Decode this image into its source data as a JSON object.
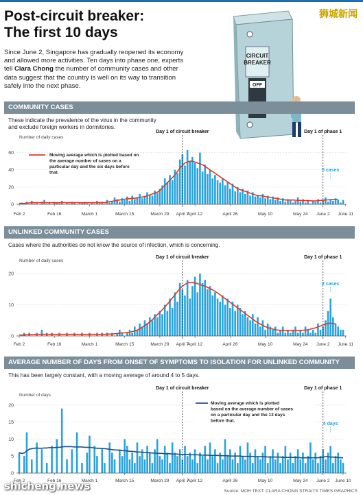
{
  "header": {
    "title_line1": "Post-circuit breaker:",
    "title_line2": "The first 10 days",
    "brand": "狮城新闻",
    "intro_part1": "Since June 2, Singapore has gradually reopened its economy and allowed more activities. Ten days into phase one, experts tell ",
    "intro_bold": "Clara Chong",
    "intro_part2": " the number of community cases and other data suggest that the country is well on its way to transition safely into the next phase.",
    "illustration_text1": "CIRCUIT",
    "illustration_text2": "BREAKER",
    "illustration_text3": "OFF"
  },
  "sections": [
    {
      "title": "COMMUNITY CASES",
      "description": "These indicate the prevalence of the virus in the community\nand exclude foreign workers in dormitories."
    },
    {
      "title": "UNLINKED COMMUNITY CASES",
      "description": "Cases where the authorities do not know the source of infection, which is concerning."
    },
    {
      "title": "AVERAGE NUMBER OF DAYS FROM ONSET OF SYMPTOMS TO ISOLATION FOR UNLINKED COMMUNITY CASES",
      "description": "This has been largely constant, with a moving average of around 4 to 5 days."
    }
  ],
  "footer": {
    "watermark": "shicheng.news",
    "source": "Source: MOH   TEXT: CLARA CHONG   STRAITS TIMES GRAPHICS"
  },
  "colors": {
    "bar": "#29a3dc",
    "line": "#d93a2b",
    "line3": "#1b4f93",
    "section": "#7c8e99",
    "marker": "#222222",
    "accent_text": "#29a3dc"
  },
  "chart_data": [
    {
      "type": "bar",
      "title": "COMMUNITY CASES",
      "ylabel": "Number of daily cases",
      "ylim": [
        0,
        70
      ],
      "yticks": [
        0,
        20,
        40,
        60
      ],
      "x_tick_labels": [
        "Feb 2",
        "Feb 16",
        "March 1",
        "March 15",
        "March 29",
        "April 7",
        "April 12",
        "April 26",
        "May 10",
        "May 24",
        "June 2",
        "June 11"
      ],
      "x_tick_days": [
        0,
        14,
        28,
        42,
        56,
        65,
        70,
        84,
        98,
        112,
        121,
        130
      ],
      "markers": [
        {
          "day": 65,
          "label": "Day 1 of circuit breaker"
        },
        {
          "day": 121,
          "label": "Day 1 of phase 1"
        }
      ],
      "legend_text": "Moving average which is plotted based on the average number of cases on a particular day and the six days before that.",
      "end_annotation": "5 cases",
      "series": [
        {
          "name": "Daily community cases",
          "values": [
            0,
            2,
            1,
            3,
            0,
            4,
            1,
            2,
            0,
            3,
            5,
            1,
            2,
            0,
            3,
            2,
            1,
            4,
            0,
            2,
            1,
            3,
            2,
            0,
            1,
            2,
            3,
            1,
            0,
            2,
            1,
            4,
            2,
            3,
            1,
            5,
            2,
            4,
            8,
            6,
            3,
            7,
            5,
            9,
            4,
            10,
            6,
            8,
            12,
            7,
            9,
            14,
            11,
            10,
            16,
            13,
            18,
            22,
            30,
            26,
            34,
            28,
            40,
            36,
            52,
            58,
            45,
            63,
            50,
            55,
            48,
            42,
            60,
            38,
            46,
            35,
            40,
            30,
            34,
            28,
            25,
            30,
            22,
            26,
            18,
            24,
            15,
            20,
            14,
            18,
            12,
            16,
            10,
            14,
            9,
            11,
            8,
            12,
            7,
            10,
            6,
            9,
            5,
            8,
            4,
            7,
            3,
            6,
            5,
            2,
            4,
            8,
            3,
            6,
            2,
            5,
            1,
            4,
            3,
            6,
            2,
            5,
            8,
            3,
            6,
            4,
            7,
            5,
            2,
            5
          ]
        },
        {
          "name": "Moving average",
          "values": [
            1,
            1,
            1,
            1.5,
            1.5,
            2,
            2,
            2,
            2,
            2,
            2,
            2,
            2,
            1.8,
            1.8,
            1.8,
            1.8,
            2,
            2,
            2,
            2,
            2,
            2,
            2,
            1.8,
            1.8,
            1.8,
            1.8,
            1.8,
            2,
            2,
            2,
            2,
            2,
            2,
            2.5,
            3,
            3.5,
            4,
            4.5,
            5,
            5.5,
            6,
            6.5,
            6.5,
            7,
            7,
            7.5,
            8,
            8.5,
            9,
            10,
            11,
            12,
            13,
            14,
            16,
            19,
            22,
            25,
            28,
            31,
            34,
            38,
            42,
            45,
            48,
            49,
            50,
            50,
            49,
            48,
            47,
            46,
            44,
            42,
            40,
            38,
            36,
            34,
            32,
            30,
            28,
            26,
            24,
            22,
            20,
            18,
            17,
            16,
            15,
            14,
            13,
            12,
            11,
            10,
            10,
            9.5,
            9,
            8.5,
            8,
            7.5,
            7,
            6.5,
            6,
            5.5,
            5,
            5,
            5,
            5,
            4.8,
            4.6,
            4.5,
            4.4,
            4.3,
            4.2,
            4.1,
            4,
            4,
            4.2,
            4.5,
            4.8,
            5,
            5.2,
            5.4,
            5.5,
            5.6,
            5.5
          ]
        }
      ]
    },
    {
      "type": "bar",
      "title": "UNLINKED COMMUNITY CASES",
      "ylabel": "Number of daily cases",
      "ylim": [
        0,
        22
      ],
      "yticks": [
        0,
        10,
        20
      ],
      "x_tick_labels": [
        "Feb 2",
        "Feb 16",
        "March 1",
        "March 15",
        "March 29",
        "April 7",
        "April 12",
        "April 26",
        "May 10",
        "May 24",
        "June 2",
        "June 11"
      ],
      "x_tick_days": [
        0,
        14,
        28,
        42,
        56,
        65,
        70,
        84,
        98,
        112,
        121,
        130
      ],
      "markers": [
        {
          "day": 65,
          "label": "Day 1 of circuit breaker"
        },
        {
          "day": 121,
          "label": "Day 1 of phase 1"
        }
      ],
      "end_annotation": "2 cases",
      "series": [
        {
          "name": "Daily unlinked cases",
          "values": [
            0,
            0,
            1,
            0,
            1,
            0,
            0,
            1,
            0,
            2,
            0,
            1,
            0,
            1,
            0,
            0,
            1,
            0,
            0,
            1,
            0,
            0,
            1,
            0,
            0,
            1,
            0,
            0,
            1,
            0,
            0,
            1,
            0,
            1,
            0,
            1,
            0,
            1,
            0,
            1,
            2,
            1,
            0,
            1,
            2,
            1,
            3,
            2,
            4,
            3,
            5,
            4,
            6,
            5,
            7,
            6,
            8,
            7,
            10,
            8,
            12,
            9,
            14,
            11,
            17,
            15,
            13,
            18,
            12,
            16,
            19,
            14,
            20,
            17,
            18,
            15,
            16,
            13,
            14,
            12,
            11,
            13,
            10,
            12,
            9,
            11,
            8,
            10,
            9,
            7,
            8,
            6,
            5,
            7,
            4,
            6,
            3,
            5,
            2,
            4,
            3,
            2,
            3,
            1,
            2,
            3,
            1,
            2,
            1,
            2,
            3,
            1,
            2,
            1,
            3,
            2,
            1,
            2,
            1,
            4,
            2,
            3,
            5,
            8,
            12,
            6,
            4,
            3,
            2,
            2
          ]
        },
        {
          "name": "Moving average",
          "values": [
            0.3,
            0.3,
            0.3,
            0.4,
            0.4,
            0.4,
            0.4,
            0.5,
            0.5,
            0.5,
            0.5,
            0.5,
            0.5,
            0.5,
            0.5,
            0.5,
            0.5,
            0.5,
            0.5,
            0.5,
            0.5,
            0.5,
            0.5,
            0.5,
            0.5,
            0.5,
            0.5,
            0.5,
            0.5,
            0.5,
            0.5,
            0.5,
            0.5,
            0.5,
            0.5,
            0.6,
            0.6,
            0.6,
            0.7,
            0.8,
            0.9,
            1,
            1,
            1.1,
            1.2,
            1.4,
            1.6,
            1.9,
            2.3,
            2.8,
            3.3,
            3.9,
            4.5,
            5.2,
            6,
            6.8,
            7.6,
            8.4,
            9.3,
            10.2,
            11.2,
            12.2,
            13.2,
            14.2,
            15.2,
            16,
            16.5,
            17,
            17.2,
            17.2,
            17,
            16.8,
            16.5,
            16.2,
            16,
            15.6,
            15.2,
            14.8,
            14.3,
            13.8,
            13.2,
            12.6,
            12,
            11.4,
            10.8,
            10.2,
            9.6,
            9,
            8.4,
            7.8,
            7.2,
            6.6,
            6,
            5.4,
            4.8,
            4.3,
            3.8,
            3.4,
            3,
            2.7,
            2.4,
            2.2,
            2,
            1.9,
            1.8,
            1.8,
            1.7,
            1.7,
            1.7,
            1.7,
            1.7,
            1.7,
            1.7,
            1.8,
            1.9,
            2,
            2.2,
            2.4,
            2.6,
            2.9,
            3.2,
            3.5,
            3.8,
            4,
            4.1,
            4,
            3.8
          ]
        }
      ]
    },
    {
      "type": "bar",
      "title": "AVERAGE NUMBER OF DAYS FROM ONSET OF SYMPTOMS TO ISOLATION FOR UNLINKED COMMUNITY CASES",
      "ylabel": "Number of days",
      "ylim": [
        0,
        21
      ],
      "yticks": [
        0,
        5,
        10,
        15,
        20
      ],
      "x_tick_labels": [
        "Feb 2",
        "Feb 16",
        "March 1",
        "March 15",
        "March 29",
        "April 7",
        "April 12",
        "April 26",
        "May 10",
        "May 24",
        "June 2",
        "June 10"
      ],
      "x_tick_days": [
        0,
        14,
        28,
        42,
        56,
        65,
        70,
        84,
        98,
        112,
        121,
        129
      ],
      "markers": [
        {
          "day": 65,
          "label": "Day 1 of circuit breaker"
        },
        {
          "day": 121,
          "label": "Day 1 of phase 1"
        }
      ],
      "legend_text": "Moving average which is plotted based on the average number of cases on a particular day and the 13 days before that.",
      "end_annotation": "4 days",
      "series": [
        {
          "name": "Days to isolation",
          "values": [
            6,
            0,
            5,
            12,
            0,
            4,
            0,
            9,
            0,
            7,
            0,
            3,
            0,
            8,
            0,
            10,
            0,
            19,
            0,
            4,
            0,
            7,
            0,
            12,
            0,
            3,
            0,
            6,
            11,
            0,
            8,
            5,
            0,
            7,
            3,
            0,
            9,
            6,
            4,
            0,
            7,
            5,
            10,
            8,
            4,
            6,
            3,
            9,
            5,
            7,
            4,
            8,
            6,
            3,
            7,
            10,
            5,
            4,
            8,
            6,
            3,
            9,
            6,
            5,
            7,
            4,
            8,
            5,
            6,
            4,
            7,
            3,
            6,
            5,
            8,
            4,
            9,
            5,
            7,
            3,
            6,
            4,
            10,
            5,
            7,
            4,
            6,
            3,
            8,
            5,
            4,
            9,
            6,
            3,
            7,
            5,
            4,
            6,
            8,
            3,
            5,
            7,
            4,
            6,
            3,
            5,
            8,
            4,
            6,
            3,
            5,
            7,
            4,
            6,
            3,
            5,
            9,
            4,
            6,
            3,
            5,
            7,
            4,
            6,
            8,
            3,
            5,
            6,
            4,
            3
          ]
        },
        {
          "name": "Moving average",
          "values": [
            6,
            5.8,
            5.9,
            6.5,
            7,
            7.2,
            7.3,
            7.4,
            7.3,
            7.3,
            7.4,
            7.4,
            7.5,
            7.5,
            7.5,
            7.6,
            7.6,
            7.7,
            7.8,
            7.8,
            7.8,
            7.8,
            7.7,
            7.7,
            7.7,
            7.7,
            7.6,
            7.6,
            7.6,
            7.5,
            7.4,
            7.3,
            7.3,
            7.2,
            7.2,
            7.1,
            7,
            6.9,
            6.8,
            6.8,
            6.7,
            6.6,
            6.6,
            6.5,
            6.4,
            6.4,
            6.3,
            6.2,
            6.2,
            6.1,
            6.1,
            6,
            6,
            5.9,
            5.9,
            5.8,
            5.8,
            5.8,
            5.7,
            5.7,
            5.7,
            5.6,
            5.6,
            5.6,
            5.5,
            5.5,
            5.5,
            5.5,
            5.4,
            5.4,
            5.4,
            5.4,
            5.3,
            5.3,
            5.3,
            5.3,
            5.2,
            5.2,
            5.2,
            5.2,
            5.1,
            5.1,
            5.1,
            5.1,
            5,
            5,
            5,
            5,
            5,
            4.9,
            4.9,
            4.9,
            4.9,
            4.9,
            4.8,
            4.8,
            4.8,
            4.8,
            4.8,
            4.7,
            4.7,
            4.7,
            4.7,
            4.7,
            4.7,
            4.6,
            4.6,
            4.6,
            4.6,
            4.6,
            4.6,
            4.6,
            4.5,
            4.5,
            4.5,
            4.5,
            4.5,
            4.5,
            4.5,
            4.5,
            4.6,
            4.7,
            4.8,
            4.8,
            4.7,
            4.7,
            4.6,
            4.6,
            4.5,
            4.5
          ]
        }
      ]
    }
  ]
}
